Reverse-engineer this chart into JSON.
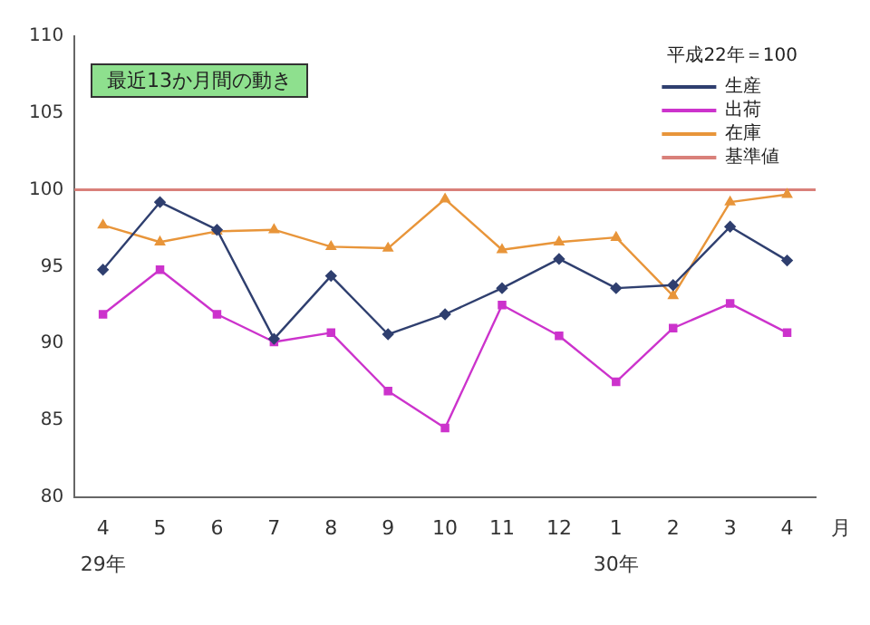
{
  "chart_data": {
    "type": "line",
    "title": "最近13か月間の動き",
    "legend_title": "平成22年＝100",
    "xlabel": "月",
    "categories": [
      "4\n29年",
      "5",
      "6",
      "7",
      "8",
      "9",
      "10",
      "11",
      "12",
      "1\n30年",
      "2",
      "3",
      "4"
    ],
    "series": [
      {
        "name": "生産",
        "color": "#2f3f6f",
        "marker": "diamond",
        "values": [
          94.8,
          99.2,
          97.4,
          90.3,
          94.4,
          90.6,
          91.9,
          93.6,
          95.5,
          93.6,
          93.8,
          97.6,
          95.4
        ]
      },
      {
        "name": "出荷",
        "color": "#cc33cc",
        "marker": "square",
        "values": [
          91.9,
          94.8,
          91.9,
          90.1,
          90.7,
          86.9,
          84.5,
          92.5,
          90.5,
          87.5,
          91.0,
          92.6,
          90.7
        ]
      },
      {
        "name": "在庫",
        "color": "#e8953a",
        "marker": "triangle",
        "values": [
          97.7,
          96.6,
          97.3,
          97.4,
          96.3,
          96.2,
          99.4,
          96.1,
          96.6,
          96.9,
          93.1,
          99.2,
          99.7
        ]
      }
    ],
    "ref_lines": [
      {
        "axis": "y",
        "value": 100,
        "label": "基準値",
        "color": "#d9807a"
      }
    ],
    "ylim": [
      80,
      110
    ],
    "yticks": [
      80,
      85,
      90,
      95,
      100,
      105,
      110
    ],
    "grid": false,
    "legend": "top right",
    "line_style": "solid"
  }
}
